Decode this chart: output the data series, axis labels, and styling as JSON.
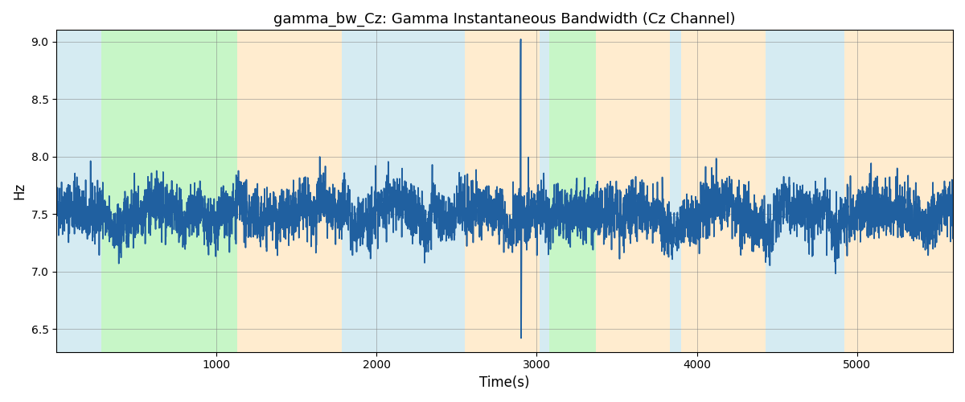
{
  "title": "gamma_bw_Cz: Gamma Instantaneous Bandwidth (Cz Channel)",
  "xlabel": "Time(s)",
  "ylabel": "Hz",
  "xlim": [
    0,
    5600
  ],
  "ylim": [
    6.3,
    9.1
  ],
  "yticks": [
    6.5,
    7.0,
    7.5,
    8.0,
    8.5,
    9.0
  ],
  "xticks": [
    1000,
    2000,
    3000,
    4000,
    5000
  ],
  "line_color": "#2060a0",
  "line_width": 1.2,
  "figsize": [
    12,
    5
  ],
  "dpi": 100,
  "bands": [
    [
      0,
      280,
      "#add8e6",
      0.5
    ],
    [
      280,
      1130,
      "#90ee90",
      0.5
    ],
    [
      1130,
      1780,
      "#ffdaa0",
      0.5
    ],
    [
      1780,
      2550,
      "#add8e6",
      0.5
    ],
    [
      2550,
      3020,
      "#ffdaa0",
      0.5
    ],
    [
      3020,
      3080,
      "#add8e6",
      0.5
    ],
    [
      3080,
      3370,
      "#90ee90",
      0.5
    ],
    [
      3370,
      3830,
      "#ffdaa0",
      0.5
    ],
    [
      3830,
      3900,
      "#add8e6",
      0.5
    ],
    [
      3900,
      4430,
      "#ffdaa0",
      0.5
    ],
    [
      4430,
      4920,
      "#add8e6",
      0.5
    ],
    [
      4920,
      5600,
      "#ffdaa0",
      0.5
    ]
  ],
  "seed": 42,
  "n_points": 5500,
  "base_mean": 7.5,
  "noise_std": 0.12
}
